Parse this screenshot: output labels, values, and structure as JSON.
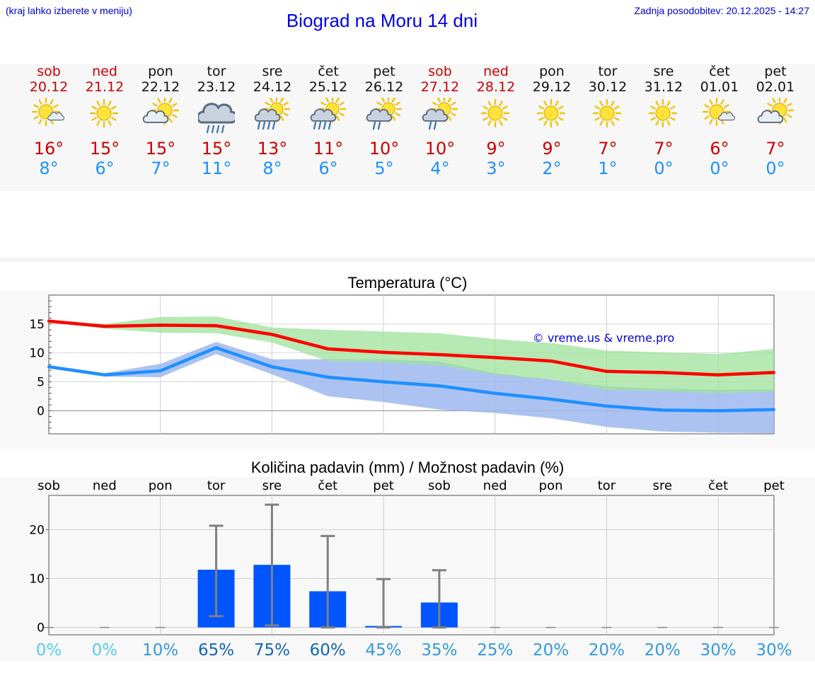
{
  "header": {
    "left_note": "(kraj lahko izberete v meniju)",
    "title": "Biograd na Moru 14 dni",
    "updated": "Zadnja posodobitev: 20.12.2025 - 14:27"
  },
  "days": [
    {
      "name": "sob",
      "date": "20.12",
      "icon": "sun-cloud-icon",
      "max": "16°",
      "min": "8°",
      "weekend": true
    },
    {
      "name": "ned",
      "date": "21.12",
      "icon": "sun-icon",
      "max": "15°",
      "min": "6°",
      "weekend": true
    },
    {
      "name": "pon",
      "date": "22.12",
      "icon": "sun-behind-cloud-icon",
      "max": "15°",
      "min": "7°",
      "weekend": false
    },
    {
      "name": "tor",
      "date": "23.12",
      "icon": "rain-cloud-icon",
      "max": "15°",
      "min": "11°",
      "weekend": false
    },
    {
      "name": "sre",
      "date": "24.12",
      "icon": "sun-rain-icon",
      "max": "13°",
      "min": "8°",
      "weekend": false
    },
    {
      "name": "čet",
      "date": "25.12",
      "icon": "sun-rain-icon",
      "max": "11°",
      "min": "6°",
      "weekend": false
    },
    {
      "name": "pet",
      "date": "26.12",
      "icon": "sun-light-rain-icon",
      "max": "10°",
      "min": "5°",
      "weekend": false
    },
    {
      "name": "sob",
      "date": "27.12",
      "icon": "sun-light-rain-icon",
      "max": "10°",
      "min": "4°",
      "weekend": true
    },
    {
      "name": "ned",
      "date": "28.12",
      "icon": "sun-icon",
      "max": "9°",
      "min": "3°",
      "weekend": true
    },
    {
      "name": "pon",
      "date": "29.12",
      "icon": "sun-icon",
      "max": "9°",
      "min": "2°",
      "weekend": false
    },
    {
      "name": "tor",
      "date": "30.12",
      "icon": "sun-icon",
      "max": "7°",
      "min": "1°",
      "weekend": false
    },
    {
      "name": "sre",
      "date": "31.12",
      "icon": "sun-icon",
      "max": "7°",
      "min": "0°",
      "weekend": false
    },
    {
      "name": "čet",
      "date": "01.01",
      "icon": "sun-cloud-icon",
      "max": "6°",
      "min": "0°",
      "weekend": false
    },
    {
      "name": "pet",
      "date": "02.01",
      "icon": "sun-behind-cloud-icon",
      "max": "7°",
      "min": "0°",
      "weekend": false
    }
  ],
  "colors": {
    "max": "#ff0000",
    "min": "#1e90ff",
    "max_band": "#9de29a",
    "min_band": "#9db8f0",
    "bar": "#0055ff",
    "error": "#808080"
  },
  "chart_data": [
    {
      "type": "line",
      "title": "Temperatura (°C)",
      "watermark": "© vreme.us & vreme.pro",
      "x": [
        0,
        1,
        2,
        3,
        4,
        5,
        6,
        7,
        8,
        9,
        10,
        11,
        12,
        13
      ],
      "ylim": [
        -4,
        20
      ],
      "yticks": [
        0,
        5,
        10,
        15
      ],
      "series": [
        {
          "name": "max",
          "values": [
            15.5,
            14.6,
            14.8,
            14.7,
            13.2,
            10.7,
            10.1,
            9.7,
            9.2,
            8.6,
            6.8,
            6.6,
            6.2,
            6.6
          ]
        },
        {
          "name": "min",
          "values": [
            7.6,
            6.2,
            6.9,
            10.9,
            7.6,
            5.8,
            5.0,
            4.3,
            3.0,
            2.0,
            0.8,
            0.1,
            0.0,
            0.2
          ]
        }
      ],
      "bands": [
        {
          "name": "max_range",
          "lower": [
            15.3,
            14.2,
            13.5,
            13.4,
            11.8,
            8.6,
            8.3,
            7.9,
            6.2,
            5.4,
            3.6,
            3.4,
            3.0,
            3.3
          ],
          "upper": [
            15.6,
            15.0,
            16.2,
            16.3,
            14.4,
            14.0,
            13.7,
            13.4,
            12.4,
            11.7,
            10.4,
            10.1,
            9.8,
            10.7
          ]
        },
        {
          "name": "min_range",
          "lower": [
            7.4,
            5.9,
            5.8,
            9.8,
            6.3,
            2.5,
            1.5,
            0.2,
            -0.4,
            -1.3,
            -2.8,
            -3.6,
            -3.8,
            -3.9
          ],
          "upper": [
            7.8,
            6.5,
            8.1,
            11.9,
            8.9,
            8.9,
            8.9,
            8.5,
            6.5,
            5.4,
            4.2,
            3.8,
            3.6,
            3.7
          ]
        }
      ]
    },
    {
      "type": "bar",
      "title": "Količina padavin (mm) / Možnost padavin (%)",
      "categories": [
        "sob",
        "ned",
        "pon",
        "tor",
        "sre",
        "čet",
        "pet",
        "sob",
        "ned",
        "pon",
        "tor",
        "sre",
        "čet",
        "pet"
      ],
      "values": [
        0,
        0,
        0,
        11.8,
        12.8,
        7.4,
        0.3,
        5.1,
        0,
        0,
        0,
        0,
        0,
        0
      ],
      "error_high": [
        0,
        0,
        0,
        20.8,
        25.1,
        18.7,
        9.9,
        11.7,
        0,
        0,
        0,
        0,
        0,
        0
      ],
      "error_low": [
        0,
        0,
        0,
        2.3,
        0.4,
        0,
        0,
        0,
        0,
        0,
        0,
        0,
        0,
        0
      ],
      "probability": [
        "0%",
        "0%",
        "10%",
        "65%",
        "75%",
        "60%",
        "45%",
        "35%",
        "25%",
        "20%",
        "20%",
        "20%",
        "30%",
        "30%"
      ],
      "probability_colors": [
        "#55ccee",
        "#55ccee",
        "#3399dd",
        "#1166bb",
        "#1166bb",
        "#1166bb",
        "#3399dd",
        "#3399dd",
        "#3399dd",
        "#3399dd",
        "#3399dd",
        "#3399dd",
        "#3399dd",
        "#3399dd"
      ],
      "ylim": [
        -1.5,
        27
      ],
      "yticks": [
        0,
        10,
        20
      ]
    }
  ]
}
